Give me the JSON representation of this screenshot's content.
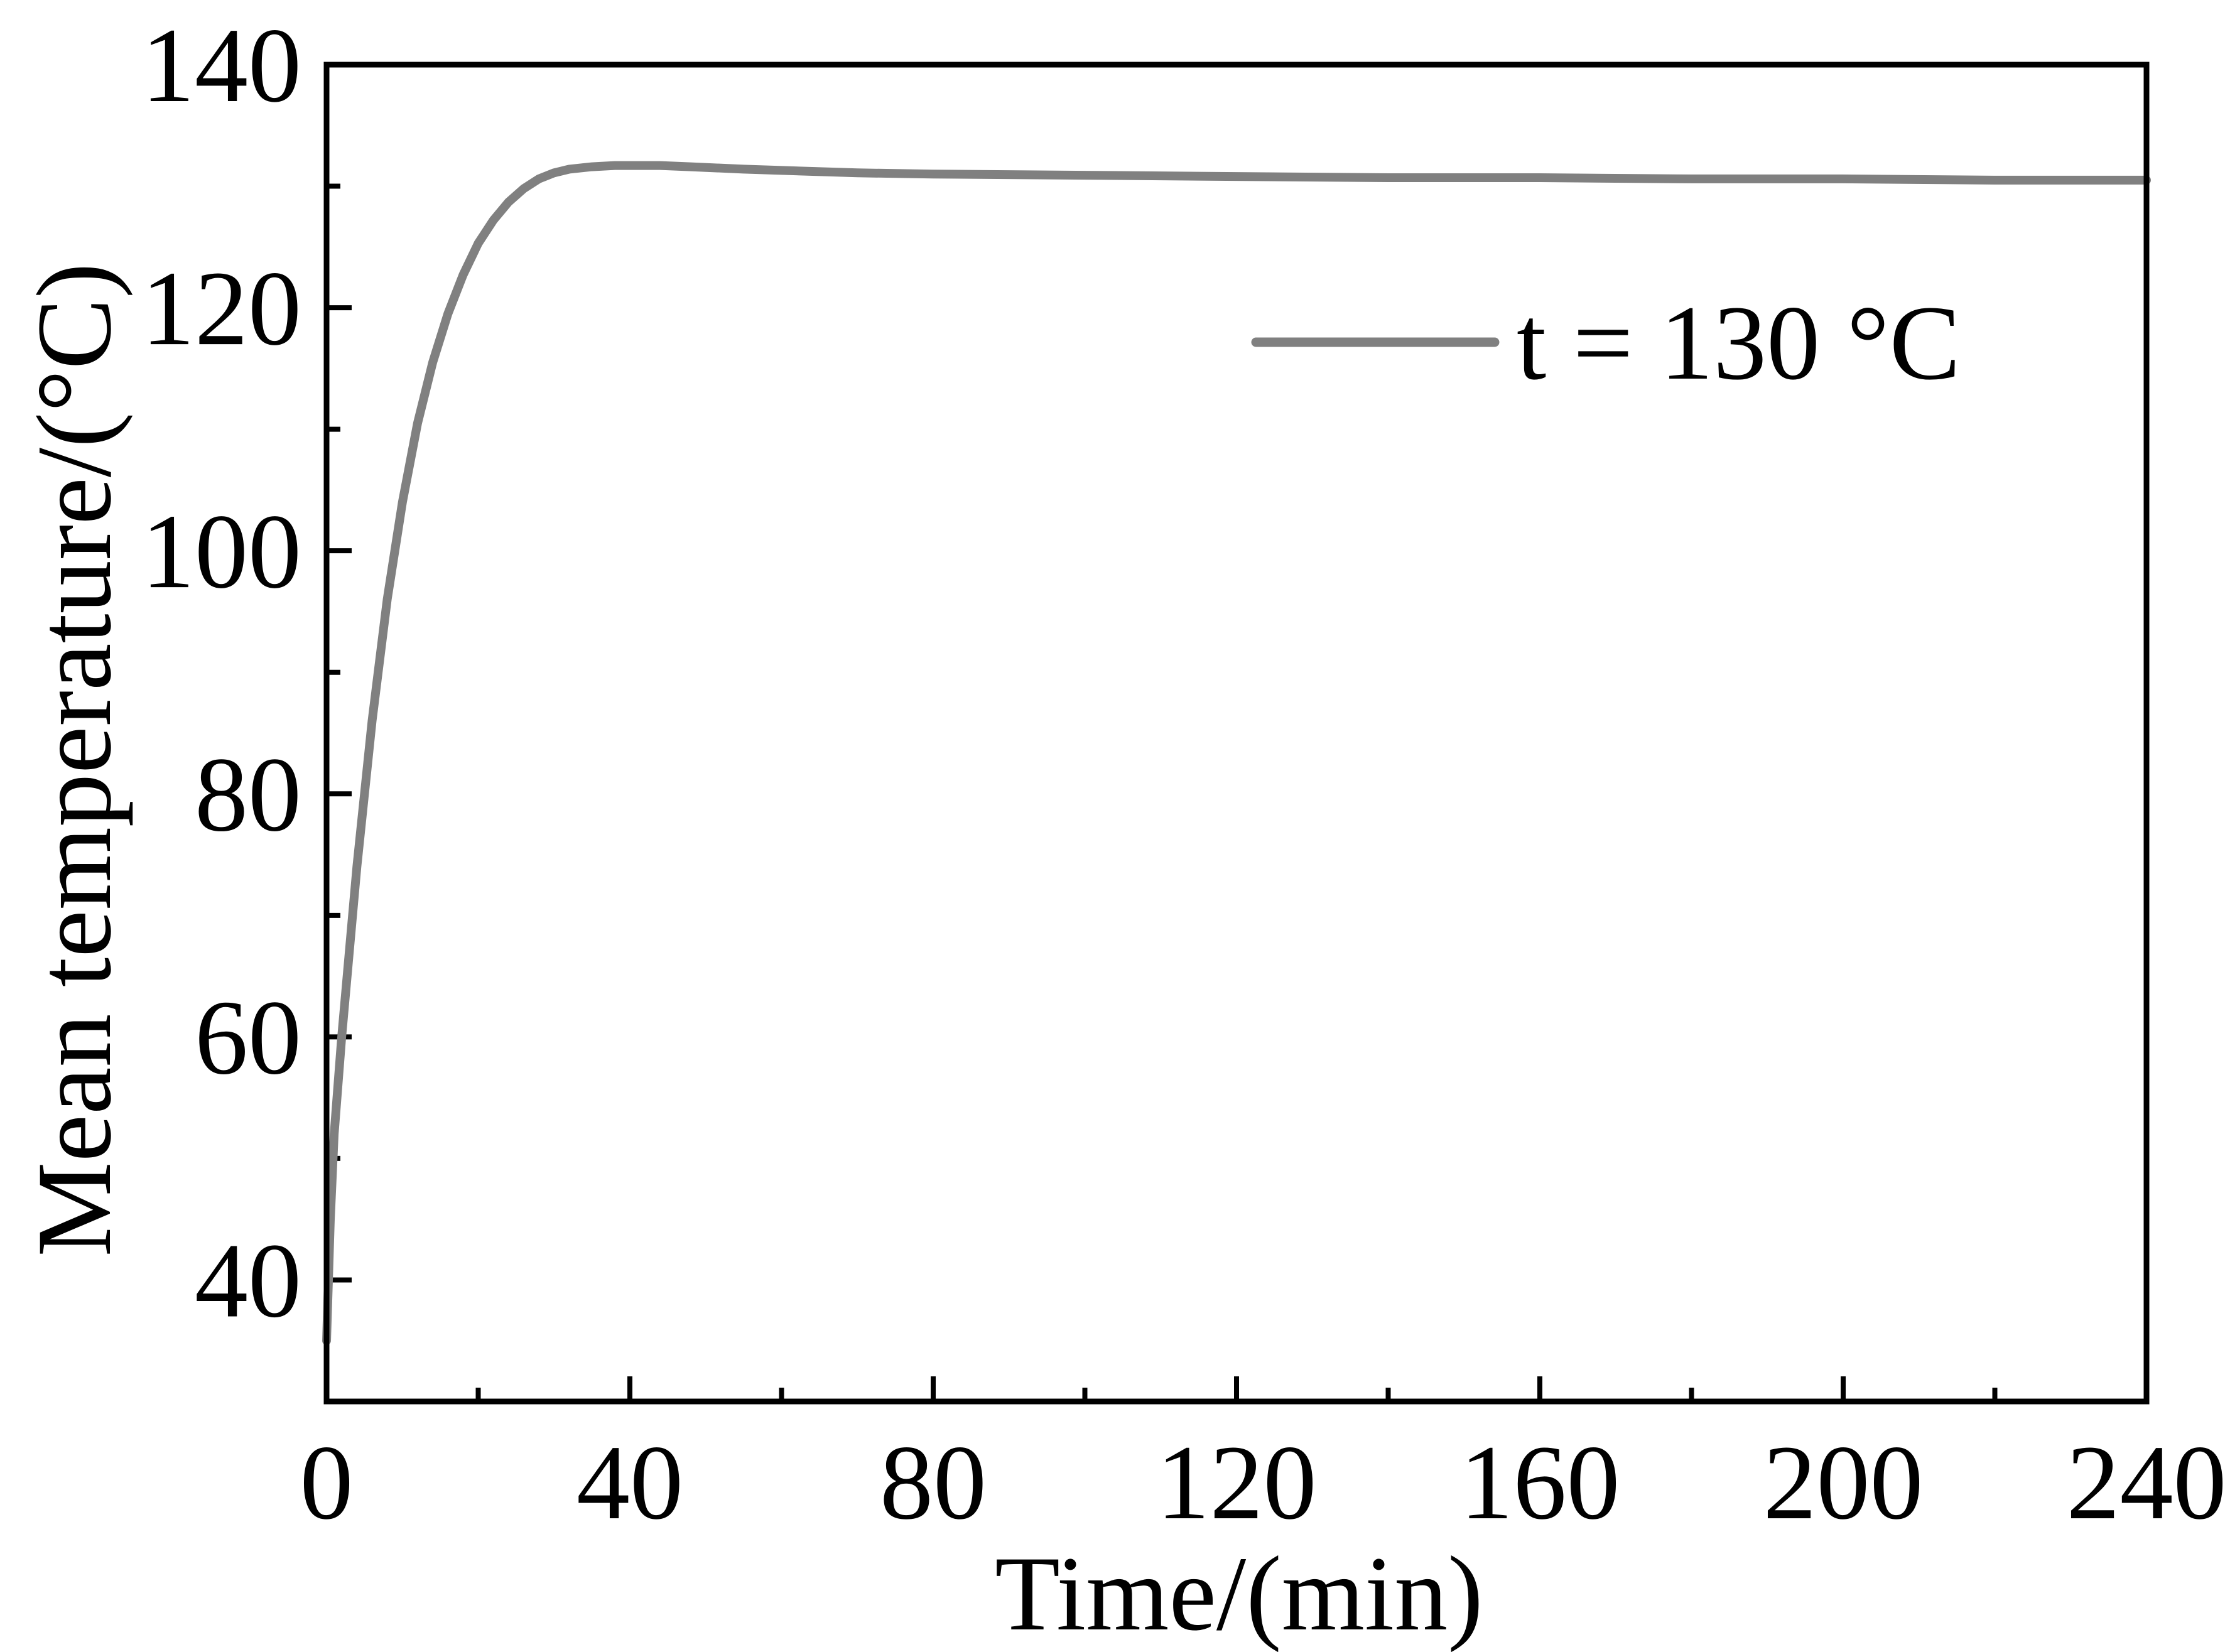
{
  "chart_data": {
    "type": "line",
    "xlabel": "Time/(min)",
    "ylabel": "Mean temperature/(°C)",
    "xlim": [
      0,
      240
    ],
    "ylim": [
      30,
      140
    ],
    "xticks": [
      0,
      40,
      80,
      120,
      160,
      200,
      240
    ],
    "xtick_labels": [
      "0",
      "40",
      "80",
      "120",
      "160",
      "200",
      "240"
    ],
    "yticks": [
      40,
      60,
      80,
      100,
      120,
      140
    ],
    "ytick_labels": [
      "40",
      "60",
      "80",
      "100",
      "120",
      "140"
    ],
    "x_minor_step": 20,
    "y_minor_step": 10,
    "grid": false,
    "legend_position": "top-right",
    "series": [
      {
        "name": "t = 130 °C",
        "color": "#808080",
        "x": [
          0,
          0.5,
          1,
          2,
          3,
          4,
          5,
          6,
          8,
          10,
          12,
          14,
          16,
          18,
          20,
          22,
          24,
          26,
          28,
          30,
          32,
          35,
          38,
          40,
          44,
          48,
          55,
          60,
          70,
          80,
          100,
          120,
          140,
          160,
          180,
          200,
          220,
          240
        ],
        "y": [
          35,
          45,
          52,
          60,
          67,
          74,
          80,
          86,
          96,
          104,
          110.5,
          115.5,
          119.5,
          122.7,
          125.3,
          127.2,
          128.7,
          129.8,
          130.6,
          131.1,
          131.4,
          131.6,
          131.7,
          131.7,
          131.7,
          131.6,
          131.4,
          131.3,
          131.1,
          131.0,
          130.9,
          130.8,
          130.7,
          130.7,
          130.6,
          130.6,
          130.5,
          130.5
        ]
      }
    ]
  }
}
